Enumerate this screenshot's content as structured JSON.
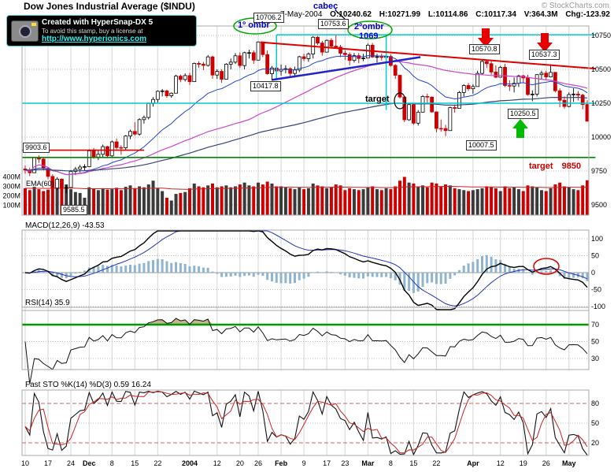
{
  "header": {
    "title": "Dow Jones Industrial Average ($INDU)",
    "credit": "© StockCharts.com",
    "date": "7-May-2004",
    "o": "O:10240.62",
    "h": "H:10271.99",
    "l": "L:10114.86",
    "c": "C:10117.34",
    "v": "V:364.3M",
    "chg": "Chg:-123.92"
  },
  "stamp": {
    "line1": "Created with HyperSnap-DX 5",
    "line2": "To avoid this stamp, buy a license at",
    "link": "http://www.hyperionics.com"
  },
  "annotations": {
    "shoulder1_label": "1º ombr",
    "shoulder1_price": "10706.2",
    "head_label": "cabeç",
    "head_price": "10753.6",
    "shoulder2_label": "2ºombr",
    "shoulder2_value": "1069",
    "neckline_price": "10417.8",
    "target_label": "target",
    "apr_high": "10570.8",
    "late_apr_high": "10537.3",
    "support_level": "10250.5",
    "mar_low": "10007.5",
    "left_level": "9903.6",
    "nov_low": "9585.5",
    "target2_label": "target",
    "target2_price": "9850"
  },
  "panels": {
    "volume_label": "EMA(60)",
    "macd_label": "MACD(12,26,9) -43.53",
    "rsi_label": "RSI(14) 35.9",
    "sto_label": "Fast STO %K(14) %D(3) 0.59 16.24"
  },
  "axes": {
    "price_ticks": [
      10750,
      10500,
      10250,
      10000,
      9750,
      9500
    ],
    "volume_ticks": [
      {
        "label": "400M",
        "v": 400
      },
      {
        "label": "300M",
        "v": 300
      },
      {
        "label": "200M",
        "v": 200
      },
      {
        "label": "100M",
        "v": 100
      }
    ],
    "macd_ticks": [
      100,
      50,
      0,
      -50,
      -100
    ],
    "rsi_ticks": [
      70,
      50,
      30
    ],
    "sto_ticks": [
      80,
      50,
      20
    ],
    "x_ticks": [
      {
        "label": "10",
        "i": 0
      },
      {
        "label": "17",
        "i": 5
      },
      {
        "label": "24",
        "i": 10
      },
      {
        "label": "Dec",
        "i": 14,
        "b": 1
      },
      {
        "label": "8",
        "i": 19
      },
      {
        "label": "15",
        "i": 24
      },
      {
        "label": "22",
        "i": 29
      },
      {
        "label": "2004",
        "i": 36,
        "b": 1
      },
      {
        "label": "12",
        "i": 42
      },
      {
        "label": "20",
        "i": 47
      },
      {
        "label": "26",
        "i": 51
      },
      {
        "label": "Feb",
        "i": 56,
        "b": 1
      },
      {
        "label": "9",
        "i": 61
      },
      {
        "label": "17",
        "i": 66
      },
      {
        "label": "23",
        "i": 70
      },
      {
        "label": "Mar",
        "i": 75,
        "b": 1
      },
      {
        "label": "8",
        "i": 80
      },
      {
        "label": "15",
        "i": 85
      },
      {
        "label": "22",
        "i": 90
      },
      {
        "label": "Apr",
        "i": 98,
        "b": 1
      },
      {
        "label": "12",
        "i": 104
      },
      {
        "label": "19",
        "i": 109
      },
      {
        "label": "26",
        "i": 114
      },
      {
        "label": "May",
        "i": 119,
        "b": 1
      }
    ]
  },
  "chart_data": {
    "type": "candlestick",
    "title": "Dow Jones Industrial Average ($INDU)",
    "ylim": [
      9430,
      10820
    ],
    "colors": {
      "up": "#000000",
      "down": "#cc0000",
      "ema20": "#2244cc",
      "sma50": "#cc44cc",
      "long": "#334477",
      "signal": "#2233bb",
      "hist": "#8fb4d0",
      "cyan": "#00cccc",
      "green": "#008800",
      "red": "#dd0000",
      "vol_ema": "#cc2222"
    },
    "overlays": {
      "ema": 20,
      "sma": 50,
      "long_ema": 120,
      "volume_ema": 60
    },
    "indicators": {
      "macd_params": [
        12,
        26,
        9
      ],
      "macd_last": -43.53,
      "rsi_period": 14,
      "rsi_last": 35.9,
      "sto_params": [
        14,
        3
      ],
      "sto_last": [
        0.59,
        16.24
      ]
    },
    "dates": [
      "2003-11-10",
      "2003-11-11",
      "2003-11-12",
      "2003-11-13",
      "2003-11-14",
      "2003-11-17",
      "2003-11-18",
      "2003-11-19",
      "2003-11-20",
      "2003-11-21",
      "2003-11-24",
      "2003-11-25",
      "2003-11-26",
      "2003-11-28",
      "2003-12-01",
      "2003-12-02",
      "2003-12-03",
      "2003-12-04",
      "2003-12-05",
      "2003-12-08",
      "2003-12-09",
      "2003-12-10",
      "2003-12-11",
      "2003-12-12",
      "2003-12-15",
      "2003-12-16",
      "2003-12-17",
      "2003-12-18",
      "2003-12-19",
      "2003-12-22",
      "2003-12-23",
      "2003-12-24",
      "2003-12-26",
      "2003-12-29",
      "2003-12-30",
      "2003-12-31",
      "2004-01-02",
      "2004-01-05",
      "2004-01-06",
      "2004-01-07",
      "2004-01-08",
      "2004-01-09",
      "2004-01-12",
      "2004-01-13",
      "2004-01-14",
      "2004-01-15",
      "2004-01-16",
      "2004-01-20",
      "2004-01-21",
      "2004-01-22",
      "2004-01-23",
      "2004-01-26",
      "2004-01-27",
      "2004-01-28",
      "2004-01-29",
      "2004-01-30",
      "2004-02-02",
      "2004-02-03",
      "2004-02-04",
      "2004-02-05",
      "2004-02-06",
      "2004-02-09",
      "2004-02-10",
      "2004-02-11",
      "2004-02-12",
      "2004-02-13",
      "2004-02-17",
      "2004-02-18",
      "2004-02-19",
      "2004-02-20",
      "2004-02-23",
      "2004-02-24",
      "2004-02-25",
      "2004-02-26",
      "2004-02-27",
      "2004-03-01",
      "2004-03-02",
      "2004-03-03",
      "2004-03-04",
      "2004-03-05",
      "2004-03-08",
      "2004-03-09",
      "2004-03-10",
      "2004-03-11",
      "2004-03-12",
      "2004-03-15",
      "2004-03-16",
      "2004-03-17",
      "2004-03-18",
      "2004-03-19",
      "2004-03-22",
      "2004-03-23",
      "2004-03-24",
      "2004-03-25",
      "2004-03-26",
      "2004-03-29",
      "2004-03-30",
      "2004-03-31",
      "2004-04-01",
      "2004-04-02",
      "2004-04-05",
      "2004-04-06",
      "2004-04-07",
      "2004-04-08",
      "2004-04-12",
      "2004-04-13",
      "2004-04-14",
      "2004-04-15",
      "2004-04-16",
      "2004-04-19",
      "2004-04-20",
      "2004-04-21",
      "2004-04-22",
      "2004-04-23",
      "2004-04-26",
      "2004-04-27",
      "2004-04-28",
      "2004-04-29",
      "2004-04-30",
      "2004-05-03",
      "2004-05-04",
      "2004-05-05",
      "2004-05-06",
      "2004-05-07"
    ],
    "ohlc": [
      [
        9765,
        9790,
        9730,
        9757
      ],
      [
        9757,
        9775,
        9712,
        9737
      ],
      [
        9737,
        9855,
        9737,
        9848
      ],
      [
        9848,
        9866,
        9810,
        9838
      ],
      [
        9838,
        9850,
        9755,
        9769
      ],
      [
        9769,
        9780,
        9690,
        9710
      ],
      [
        9710,
        9725,
        9600,
        9624
      ],
      [
        9624,
        9705,
        9610,
        9690
      ],
      [
        9690,
        9695,
        9600,
        9623
      ],
      [
        9623,
        9648,
        9586,
        9628
      ],
      [
        9628,
        9757,
        9628,
        9747
      ],
      [
        9747,
        9780,
        9720,
        9763
      ],
      [
        9763,
        9795,
        9740,
        9779
      ],
      [
        9779,
        9800,
        9755,
        9782
      ],
      [
        9782,
        9910,
        9782,
        9899
      ],
      [
        9899,
        9920,
        9840,
        9853
      ],
      [
        9853,
        9900,
        9830,
        9873
      ],
      [
        9873,
        9945,
        9850,
        9930
      ],
      [
        9930,
        9935,
        9845,
        9862
      ],
      [
        9862,
        9975,
        9855,
        9965
      ],
      [
        9965,
        9990,
        9910,
        9923
      ],
      [
        9923,
        9940,
        9870,
        9921
      ],
      [
        9921,
        10015,
        9900,
        10008
      ],
      [
        10008,
        10055,
        9985,
        10042
      ],
      [
        10042,
        10110,
        10010,
        10022
      ],
      [
        10022,
        10140,
        10010,
        10129
      ],
      [
        10129,
        10160,
        10100,
        10145
      ],
      [
        10145,
        10255,
        10130,
        10248
      ],
      [
        10248,
        10295,
        10225,
        10278
      ],
      [
        10278,
        10345,
        10255,
        10338
      ],
      [
        10338,
        10355,
        10300,
        10341
      ],
      [
        10341,
        10350,
        10290,
        10305
      ],
      [
        10305,
        10330,
        10290,
        10324
      ],
      [
        10324,
        10460,
        10324,
        10450
      ],
      [
        10450,
        10462,
        10405,
        10425
      ],
      [
        10425,
        10470,
        10410,
        10454
      ],
      [
        10454,
        10475,
        10385,
        10409
      ],
      [
        10409,
        10550,
        10409,
        10544
      ],
      [
        10544,
        10560,
        10510,
        10538
      ],
      [
        10538,
        10555,
        10495,
        10529
      ],
      [
        10529,
        10605,
        10520,
        10592
      ],
      [
        10592,
        10600,
        10430,
        10458
      ],
      [
        10458,
        10500,
        10430,
        10485
      ],
      [
        10485,
        10500,
        10400,
        10427
      ],
      [
        10427,
        10545,
        10427,
        10538
      ],
      [
        10538,
        10580,
        10500,
        10553
      ],
      [
        10553,
        10620,
        10540,
        10600
      ],
      [
        10600,
        10625,
        10510,
        10528
      ],
      [
        10528,
        10630,
        10500,
        10623
      ],
      [
        10623,
        10645,
        10580,
        10623
      ],
      [
        10623,
        10640,
        10540,
        10568
      ],
      [
        10568,
        10706.2,
        10568,
        10702
      ],
      [
        10702,
        10705,
        10590,
        10609
      ],
      [
        10609,
        10640,
        10460,
        10468
      ],
      [
        10468,
        10525,
        10417.8,
        10510
      ],
      [
        10510,
        10530,
        10460,
        10488
      ],
      [
        10488,
        10535,
        10455,
        10499
      ],
      [
        10499,
        10530,
        10470,
        10505
      ],
      [
        10505,
        10515,
        10440,
        10470
      ],
      [
        10470,
        10520,
        10440,
        10495
      ],
      [
        10495,
        10600,
        10480,
        10593
      ],
      [
        10593,
        10615,
        10560,
        10579
      ],
      [
        10579,
        10625,
        10555,
        10613
      ],
      [
        10613,
        10745,
        10580,
        10737
      ],
      [
        10737,
        10745,
        10680,
        10694
      ],
      [
        10694,
        10710,
        10600,
        10627
      ],
      [
        10627,
        10720,
        10627,
        10714
      ],
      [
        10714,
        10730,
        10655,
        10671
      ],
      [
        10671,
        10753.6,
        10655,
        10664
      ],
      [
        10664,
        10680,
        10590,
        10619
      ],
      [
        10619,
        10640,
        10570,
        10609
      ],
      [
        10609,
        10625,
        10530,
        10566
      ],
      [
        10566,
        10620,
        10550,
        10601
      ],
      [
        10601,
        10620,
        10545,
        10580
      ],
      [
        10580,
        10615,
        10560,
        10583
      ],
      [
        10583,
        10690,
        10583,
        10678
      ],
      [
        10678,
        10695,
        10585,
        10591
      ],
      [
        10591,
        10615,
        10550,
        10593
      ],
      [
        10593,
        10615,
        10565,
        10588
      ],
      [
        10588,
        10650,
        10550,
        10595
      ],
      [
        10595,
        10610,
        10520,
        10529
      ],
      [
        10529,
        10540,
        10430,
        10456
      ],
      [
        10456,
        10460,
        10285,
        10296
      ],
      [
        10296,
        10300,
        10110,
        10128
      ],
      [
        10128,
        10245,
        10120,
        10240
      ],
      [
        10240,
        10245,
        10090,
        10103
      ],
      [
        10103,
        10200,
        10085,
        10184
      ],
      [
        10184,
        10310,
        10184,
        10300
      ],
      [
        10300,
        10320,
        10250,
        10295
      ],
      [
        10295,
        10300,
        10180,
        10186
      ],
      [
        10186,
        10190,
        10035,
        10064
      ],
      [
        10064,
        10130,
        10040,
        10063
      ],
      [
        10063,
        10090,
        10007.5,
        10048
      ],
      [
        10048,
        10225,
        10048,
        10218
      ],
      [
        10218,
        10240,
        10180,
        10212
      ],
      [
        10212,
        10340,
        10212,
        10329
      ],
      [
        10329,
        10390,
        10300,
        10381
      ],
      [
        10381,
        10400,
        10340,
        10357
      ],
      [
        10357,
        10390,
        10320,
        10373
      ],
      [
        10373,
        10490,
        10373,
        10470
      ],
      [
        10470,
        10570,
        10460,
        10558
      ],
      [
        10558,
        10570.8,
        10510,
        10542
      ],
      [
        10542,
        10560,
        10460,
        10480
      ],
      [
        10480,
        10530,
        10435,
        10442
      ],
      [
        10442,
        10525,
        10440,
        10515
      ],
      [
        10515,
        10540,
        10370,
        10381
      ],
      [
        10381,
        10420,
        10340,
        10377
      ],
      [
        10377,
        10440,
        10330,
        10397
      ],
      [
        10397,
        10460,
        10370,
        10452
      ],
      [
        10452,
        10460,
        10400,
        10437
      ],
      [
        10437,
        10460,
        10305,
        10314
      ],
      [
        10314,
        10345,
        10265,
        10317
      ],
      [
        10317,
        10465,
        10300,
        10461
      ],
      [
        10461,
        10490,
        10430,
        10472
      ],
      [
        10472,
        10490,
        10420,
        10444
      ],
      [
        10444,
        10537.3,
        10440,
        10478
      ],
      [
        10478,
        10480,
        10330,
        10342
      ],
      [
        10342,
        10360,
        10220,
        10272
      ],
      [
        10272,
        10300,
        10210,
        10226
      ],
      [
        10226,
        10330,
        10220,
        10314
      ],
      [
        10314,
        10360,
        10260,
        10317
      ],
      [
        10317,
        10340,
        10270,
        10310
      ],
      [
        10310,
        10320,
        10205,
        10241
      ],
      [
        10240.62,
        10271.99,
        10114.86,
        10117.34
      ]
    ],
    "volume": [
      280,
      260,
      295,
      270,
      250,
      265,
      310,
      285,
      300,
      320,
      270,
      240,
      230,
      180,
      290,
      275,
      260,
      280,
      265,
      270,
      285,
      260,
      295,
      310,
      280,
      300,
      290,
      320,
      360,
      280,
      250,
      180,
      150,
      220,
      230,
      240,
      280,
      330,
      300,
      290,
      310,
      330,
      290,
      300,
      310,
      290,
      300,
      320,
      340,
      310,
      300,
      340,
      320,
      350,
      330,
      300,
      300,
      290,
      280,
      270,
      290,
      270,
      280,
      330,
      310,
      300,
      280,
      290,
      320,
      310,
      260,
      280,
      270,
      260,
      270,
      290,
      300,
      270,
      260,
      280,
      270,
      300,
      360,
      400,
      340,
      330,
      300,
      310,
      290,
      340,
      330,
      300,
      320,
      310,
      280,
      270,
      260,
      250,
      260,
      270,
      280,
      300,
      290,
      280,
      250,
      300,
      280,
      290,
      270,
      250,
      310,
      300,
      290,
      260,
      250,
      280,
      320,
      340,
      300,
      290,
      270,
      260,
      310,
      364.3
    ],
    "hlines": [
      {
        "p": 10755,
        "i0": 55,
        "i1": 124.8,
        "color": "#00cccc",
        "w": 1.5
      },
      {
        "p": 10250,
        "i0": -0.69,
        "i1": 124.8,
        "color": "#00cccc",
        "w": 1.5
      },
      {
        "p": 9850,
        "i0": -0.69,
        "i1": 124.8,
        "color": "#008800",
        "w": 1.6
      },
      {
        "p": 9903.6,
        "i0": -0.69,
        "i1": 26,
        "color": "#dd0000",
        "w": 1.6
      }
    ],
    "vlines": [
      {
        "i": 55,
        "p0": 10755,
        "p1": 10420,
        "color": "#00cccc",
        "w": 1.5
      },
      {
        "i": 79,
        "p0": 10755,
        "p1": 10200,
        "color": "#00cccc",
        "w": 1.5
      }
    ],
    "trendlines": [
      {
        "i0": 51.5,
        "p0": 10700,
        "i1": 124.8,
        "p1": 10505,
        "color": "#dd0000",
        "w": 2
      },
      {
        "i0": 54,
        "p0": 10422,
        "i1": 86.5,
        "p1": 10590,
        "color": "#2222cc",
        "w": 2.5
      }
    ]
  }
}
